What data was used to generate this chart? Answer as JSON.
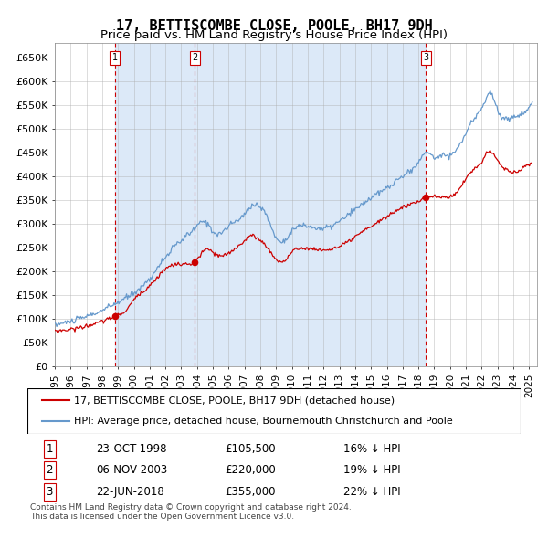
{
  "title": "17, BETTISCOMBE CLOSE, POOLE, BH17 9DH",
  "subtitle": "Price paid vs. HM Land Registry's House Price Index (HPI)",
  "ylabel_ticks": [
    "£0",
    "£50K",
    "£100K",
    "£150K",
    "£200K",
    "£250K",
    "£300K",
    "£350K",
    "£400K",
    "£450K",
    "£500K",
    "£550K",
    "£600K",
    "£650K"
  ],
  "ytick_vals": [
    0,
    50000,
    100000,
    150000,
    200000,
    250000,
    300000,
    350000,
    400000,
    450000,
    500000,
    550000,
    600000,
    650000
  ],
  "ylim": [
    0,
    680000
  ],
  "xlim_start": 1995.0,
  "xlim_end": 2025.5,
  "sale_dates": [
    1998.81,
    2003.85,
    2018.47
  ],
  "sale_prices": [
    105500,
    220000,
    355000
  ],
  "sale_labels": [
    "1",
    "2",
    "3"
  ],
  "legend_red": "17, BETTISCOMBE CLOSE, POOLE, BH17 9DH (detached house)",
  "legend_blue": "HPI: Average price, detached house, Bournemouth Christchurch and Poole",
  "table_rows": [
    [
      "1",
      "23-OCT-1998",
      "£105,500",
      "16% ↓ HPI"
    ],
    [
      "2",
      "06-NOV-2003",
      "£220,000",
      "19% ↓ HPI"
    ],
    [
      "3",
      "22-JUN-2018",
      "£355,000",
      "22% ↓ HPI"
    ]
  ],
  "footnote1": "Contains HM Land Registry data © Crown copyright and database right 2024.",
  "footnote2": "This data is licensed under the Open Government Licence v3.0.",
  "bg_fill_color": "#dce9f8",
  "red_color": "#cc0000",
  "blue_color": "#6699cc",
  "grid_color": "#aaaaaa",
  "title_fontsize": 11,
  "subtitle_fontsize": 9.5,
  "tick_fontsize": 8,
  "legend_fontsize": 8,
  "table_fontsize": 8.5
}
